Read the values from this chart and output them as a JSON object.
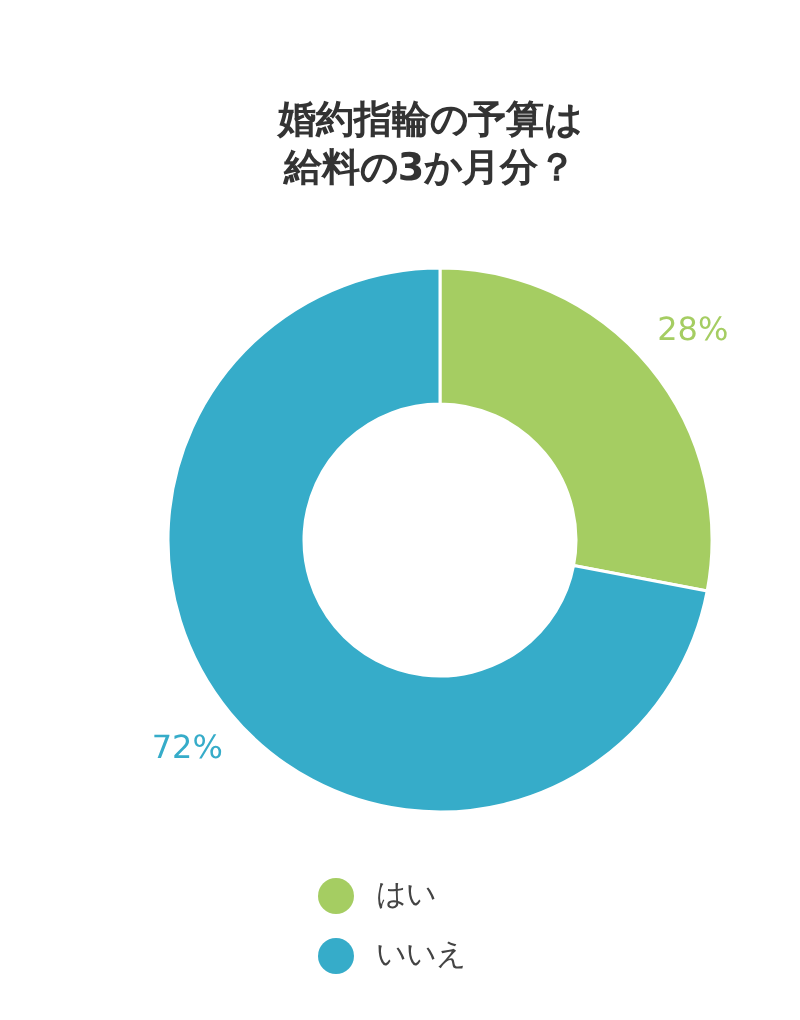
{
  "chart_data": {
    "type": "donut",
    "title": "婚約指輪の予算は給料の3か月分？",
    "categories": [
      "はい",
      "いいえ"
    ],
    "values": [
      28,
      72
    ],
    "colors": [
      "#a5cd62",
      "#36acc9"
    ],
    "value_labels": [
      "28%",
      "72%"
    ],
    "legend": "bottom"
  }
}
